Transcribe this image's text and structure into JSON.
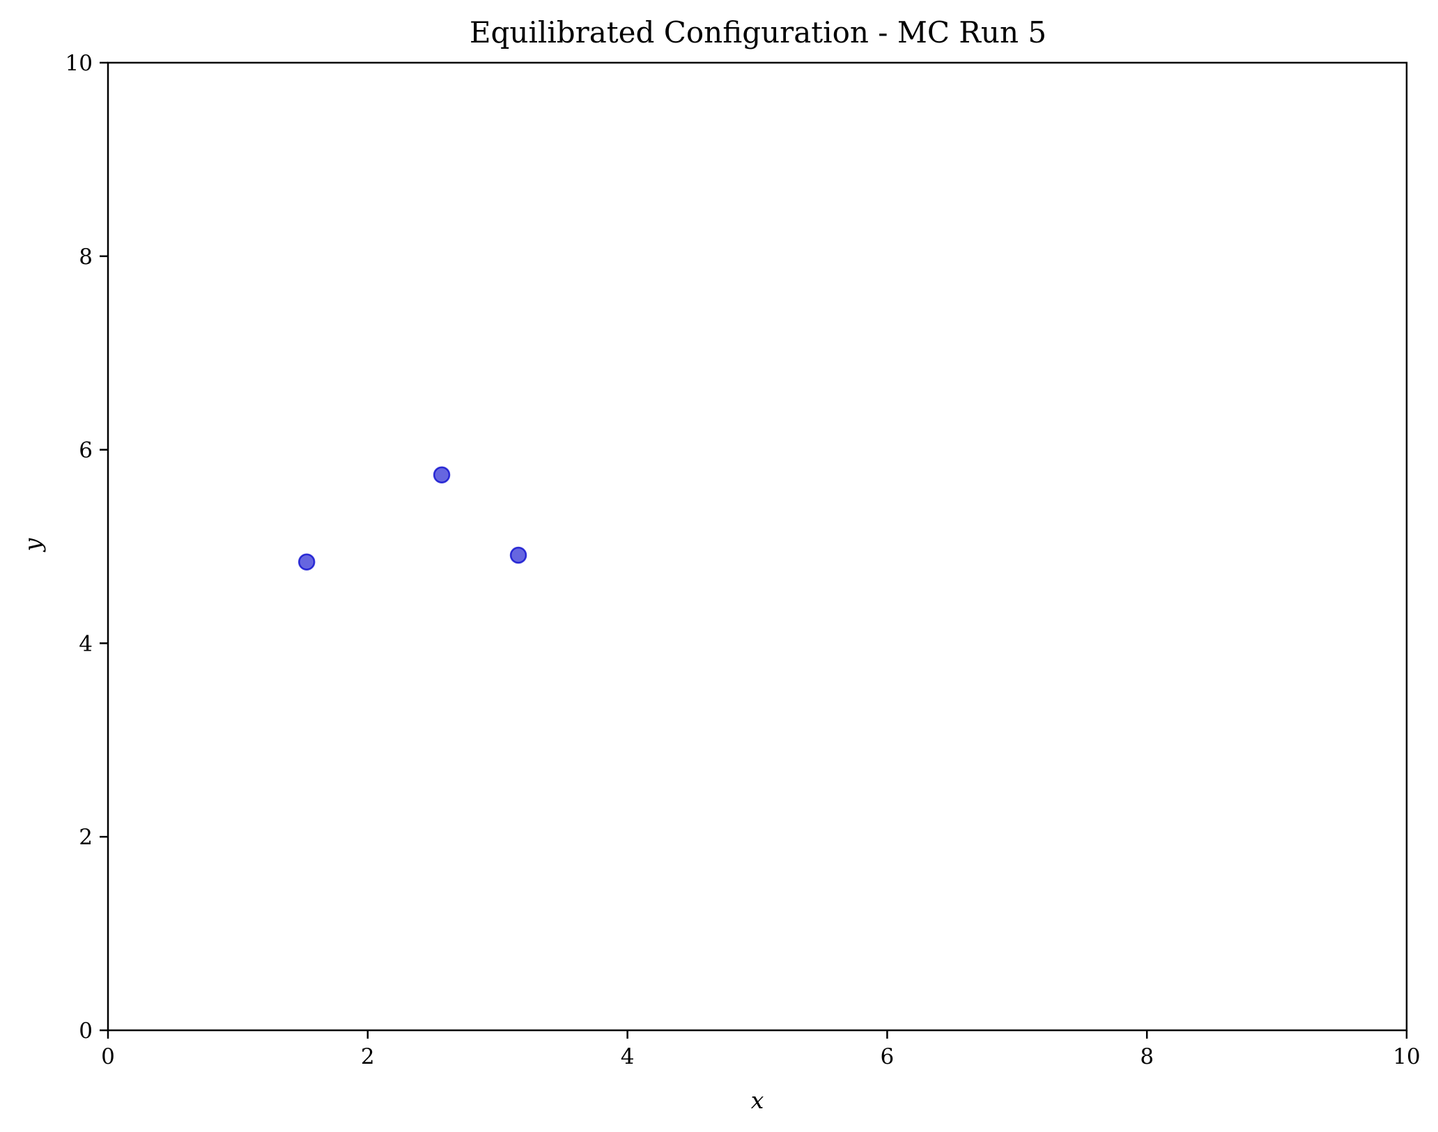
{
  "chart_data": {
    "type": "scatter",
    "title": "Equilibrated Configuration - MC Run 5",
    "xlabel": "x",
    "ylabel": "y",
    "xlim": [
      0,
      10
    ],
    "ylim": [
      0,
      10
    ],
    "xticks": [
      0,
      2,
      4,
      6,
      8,
      10
    ],
    "yticks": [
      0,
      2,
      4,
      6,
      8,
      10
    ],
    "grid": false,
    "series": [
      {
        "points": [
          {
            "x": 1.53,
            "y": 4.84
          },
          {
            "x": 2.57,
            "y": 5.74
          },
          {
            "x": 3.16,
            "y": 4.91
          }
        ],
        "color": "#0000cc",
        "fill_opacity": 0.6
      }
    ]
  }
}
